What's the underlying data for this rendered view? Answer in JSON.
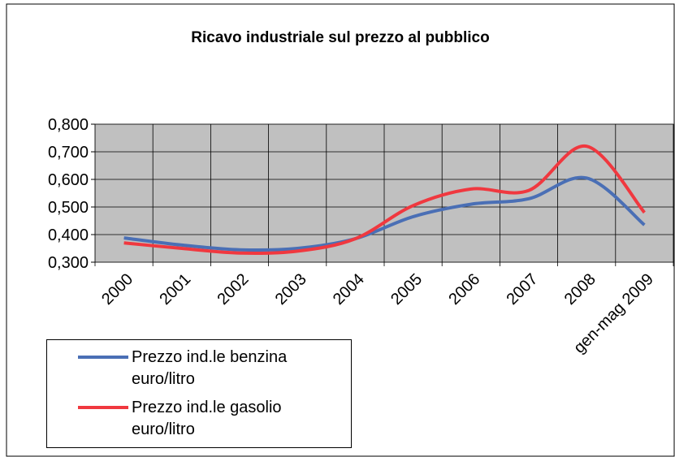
{
  "chart_data": {
    "type": "line",
    "title": "Ricavo industriale sul prezzo al pubblico",
    "categories": [
      "2000",
      "2001",
      "2002",
      "2003",
      "2004",
      "2005",
      "2006",
      "2007",
      "2008",
      "gen-mag 2009"
    ],
    "series": [
      {
        "name": "Prezzo ind.le benzina euro/litro",
        "color": "#4a6fb5",
        "values": [
          0.388,
          0.362,
          0.345,
          0.35,
          0.385,
          0.465,
          0.51,
          0.53,
          0.605,
          0.435
        ]
      },
      {
        "name": "Prezzo ind.le gasolio euro/litro",
        "color": "#f0383f",
        "values": [
          0.37,
          0.35,
          0.333,
          0.34,
          0.385,
          0.505,
          0.565,
          0.56,
          0.72,
          0.48
        ]
      }
    ],
    "ylim": [
      0.3,
      0.8
    ],
    "yticks": [
      {
        "value": 0.3,
        "label": "0,300"
      },
      {
        "value": 0.4,
        "label": "0,400"
      },
      {
        "value": 0.5,
        "label": "0,500"
      },
      {
        "value": 0.6,
        "label": "0,600"
      },
      {
        "value": 0.7,
        "label": "0,700"
      },
      {
        "value": 0.8,
        "label": "0,800"
      }
    ],
    "grid": true
  }
}
